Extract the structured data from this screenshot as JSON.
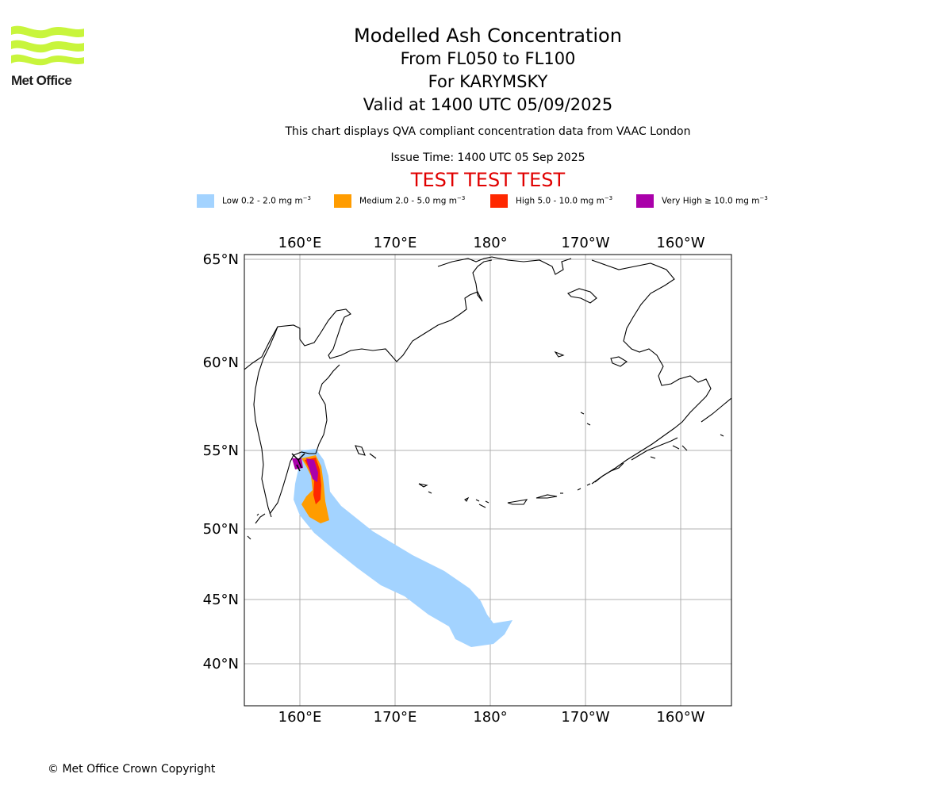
{
  "header": {
    "logo_text": "Met Office",
    "title": "Modelled Ash Concentration",
    "subtitle_lines": [
      "From FL050 to FL100",
      "For KARYMSKY",
      "Valid at 1400 UTC 05/09/2025"
    ],
    "description": "This chart displays QVA compliant concentration data from VAAC London",
    "issue_time": "Issue Time: 1400 UTC 05 Sep 2025",
    "test_banner": "TEST TEST TEST"
  },
  "legend": [
    {
      "label": "Low 0.2 - 2.0 mg m",
      "sup": "−3",
      "color": "#a3d3ff"
    },
    {
      "label": "Medium 2.0 - 5.0 mg m",
      "sup": "−3",
      "color": "#ff9c00"
    },
    {
      "label": "High 5.0 - 10.0 mg m",
      "sup": "−3",
      "color": "#ff2800"
    },
    {
      "label": "Very High ≥ 10.0 mg m",
      "sup": "−3",
      "color": "#aa00aa"
    }
  ],
  "map": {
    "lon_labels": [
      "160°E",
      "170°E",
      "180°",
      "170°W",
      "160°W"
    ],
    "lat_labels": [
      "65°N",
      "60°N",
      "55°N",
      "50°N",
      "45°N",
      "40°N"
    ],
    "colors": {
      "grid": "#b0b0b0",
      "coast": "#000000",
      "frame": "#000000"
    }
  },
  "footer": {
    "copyright": "© Met Office Crown Copyright"
  }
}
